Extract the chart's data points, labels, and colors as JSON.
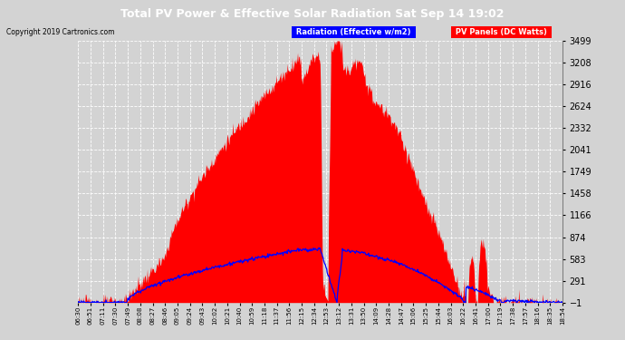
{
  "title": "Total PV Power & Effective Solar Radiation Sat Sep 14 19:02",
  "copyright": "Copyright 2019 Cartronics.com",
  "legend_radiation": "Radiation (Effective w/m2)",
  "legend_pv": "PV Panels (DC Watts)",
  "yticks": [
    -0.6,
    291.1,
    582.7,
    874.3,
    1166.0,
    1457.6,
    1749.3,
    2040.9,
    2332.5,
    2624.2,
    2915.8,
    3207.5,
    3499.1
  ],
  "xtick_labels": [
    "06:30",
    "06:51",
    "07:11",
    "07:30",
    "07:49",
    "08:08",
    "08:27",
    "08:46",
    "09:05",
    "09:24",
    "09:43",
    "10:02",
    "10:21",
    "10:40",
    "10:59",
    "11:18",
    "11:37",
    "11:56",
    "12:15",
    "12:34",
    "12:53",
    "13:12",
    "13:31",
    "13:50",
    "14:09",
    "14:28",
    "14:47",
    "15:06",
    "15:25",
    "15:44",
    "16:03",
    "16:22",
    "16:41",
    "17:00",
    "17:19",
    "17:38",
    "17:57",
    "18:16",
    "18:35",
    "18:54"
  ],
  "background_color": "#d3d3d3",
  "plot_bg_color": "#d3d3d3",
  "red_color": "#ff0000",
  "blue_color": "#0000ff",
  "grid_color": "#ffffff",
  "title_bg_color": "#000000",
  "title_text_color": "#ffffff",
  "radiation_legend_bg": "#0000ff",
  "pv_legend_bg": "#ff0000",
  "ymin": -0.6,
  "ymax": 3499.1
}
